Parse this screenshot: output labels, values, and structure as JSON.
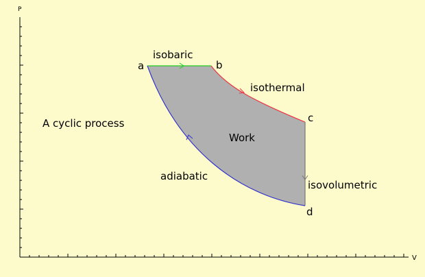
{
  "axes": {
    "y_label": "P",
    "x_label": "V"
  },
  "title": "A cyclic process",
  "points": {
    "a": "a",
    "b": "b",
    "c": "c",
    "d": "d"
  },
  "processes": {
    "ab": "isobaric",
    "bc": "isothermal",
    "cd": "isovolumetric",
    "da": "adiabatic"
  },
  "area_label": "Work",
  "colors": {
    "background": "#fdfbcc",
    "area_fill": "#b0b0b0",
    "isobaric": "#22cc22",
    "isothermal": "#ee3344",
    "isovolumetric": "#777777",
    "adiabatic": "#3333cc",
    "axis": "#000000"
  }
}
